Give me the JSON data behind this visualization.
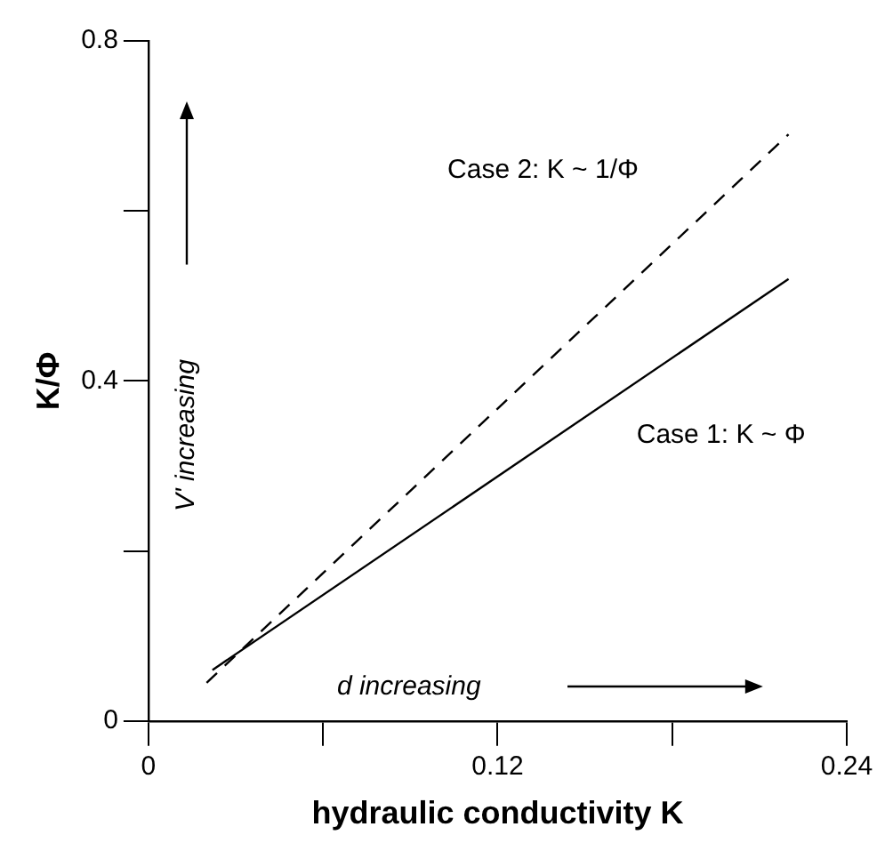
{
  "chart_data": {
    "type": "line",
    "xlabel": "hydraulic conductivity K",
    "ylabel": "K/Φ",
    "xlim": [
      0,
      0.24
    ],
    "ylim": [
      0,
      0.8
    ],
    "xticks": [
      0,
      {
        "value": 0.06,
        "label": null
      },
      0.12,
      {
        "value": 0.18,
        "label": null
      },
      0.24
    ],
    "yticks": [
      0,
      {
        "value": 0.2,
        "label": null
      },
      0.4,
      {
        "value": 0.6,
        "label": null
      },
      0.8
    ],
    "grid": false,
    "legend": false,
    "marker": "none",
    "series": [
      {
        "color": "#000000",
        "x": [
          0.022,
          0.22
        ],
        "values": [
          0.06,
          0.52
        ],
        "line_style": "solid"
      },
      {
        "color": "#000000",
        "x": [
          0.02,
          0.22
        ],
        "values": [
          0.045,
          0.69
        ],
        "line_style": "dashed"
      }
    ],
    "annotations": [
      "Case 2: K ~ 1/Φ",
      "Case 1: K ~ Φ",
      "V' increasing",
      "d increasing"
    ]
  }
}
